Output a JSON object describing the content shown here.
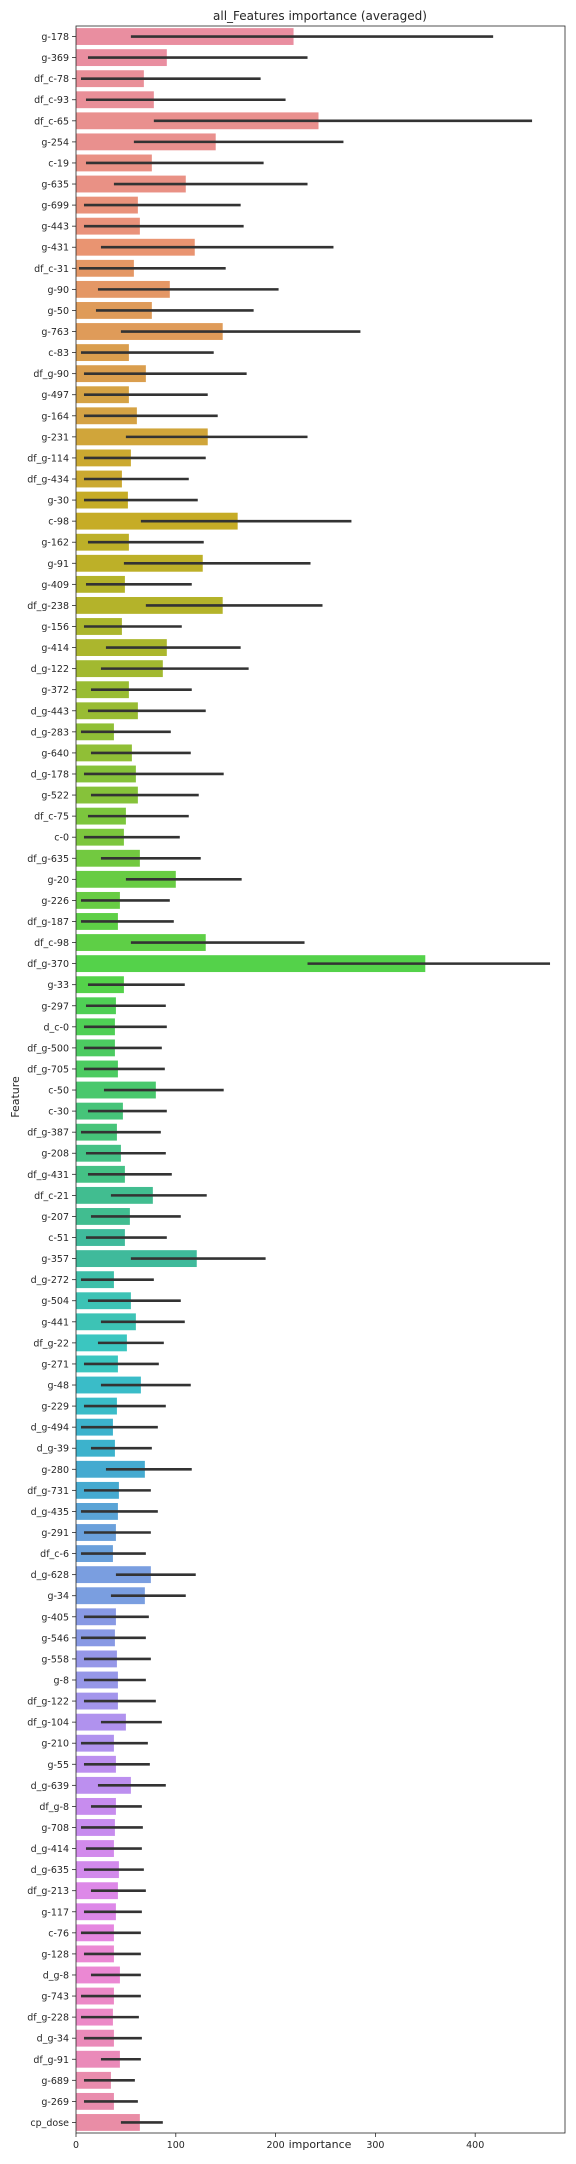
{
  "chart_data": {
    "type": "bar",
    "orientation": "horizontal",
    "title": "all_Features importance (averaged)",
    "xlabel": "importance",
    "ylabel": "Feature",
    "xlim": [
      0,
      490
    ],
    "xticks": [
      0,
      100,
      200,
      300,
      400
    ],
    "grid": false,
    "legend": "none",
    "error_bar_color": "#333333",
    "categories": [
      "g-178",
      "g-369",
      "df_c-78",
      "df_c-93",
      "df_c-65",
      "g-254",
      "c-19",
      "g-635",
      "g-699",
      "g-443",
      "g-431",
      "df_c-31",
      "g-90",
      "g-50",
      "g-763",
      "c-83",
      "df_g-90",
      "g-497",
      "g-164",
      "g-231",
      "df_g-114",
      "df_g-434",
      "g-30",
      "c-98",
      "g-162",
      "g-91",
      "g-409",
      "df_g-238",
      "g-156",
      "g-414",
      "d_g-122",
      "g-372",
      "d_g-443",
      "d_g-283",
      "g-640",
      "d_g-178",
      "g-522",
      "df_c-75",
      "c-0",
      "df_g-635",
      "g-20",
      "g-226",
      "df_g-187",
      "df_c-98",
      "df_g-370",
      "g-33",
      "g-297",
      "d_c-0",
      "df_g-500",
      "df_g-705",
      "c-50",
      "c-30",
      "df_g-387",
      "g-208",
      "df_g-431",
      "df_c-21",
      "g-207",
      "c-51",
      "g-357",
      "d_g-272",
      "g-504",
      "g-441",
      "df_g-22",
      "g-271",
      "g-48",
      "g-229",
      "d_g-494",
      "d_g-39",
      "g-280",
      "df_g-731",
      "d_g-435",
      "g-291",
      "df_c-6",
      "d_g-628",
      "g-34",
      "g-405",
      "g-546",
      "g-558",
      "g-8",
      "df_g-122",
      "df_g-104",
      "g-210",
      "g-55",
      "d_g-639",
      "df_g-8",
      "g-708",
      "d_g-414",
      "d_g-635",
      "df_g-213",
      "g-117",
      "c-76",
      "g-128",
      "d_g-8",
      "g-743",
      "df_g-228",
      "d_g-34",
      "df_g-91",
      "g-689",
      "g-269",
      "cp_dose"
    ],
    "values": [
      218,
      91,
      68,
      78,
      243,
      140,
      76,
      110,
      62,
      64,
      119,
      58,
      94,
      76,
      147,
      53,
      70,
      53,
      61,
      132,
      55,
      46,
      52,
      162,
      53,
      127,
      49,
      147,
      46,
      91,
      87,
      53,
      62,
      38,
      56,
      60,
      62,
      50,
      48,
      64,
      100,
      44,
      42,
      130,
      350,
      48,
      40,
      39,
      39,
      42,
      80,
      47,
      41,
      45,
      49,
      77,
      54,
      49,
      121,
      38,
      55,
      60,
      51,
      42,
      65,
      41,
      37,
      39,
      69,
      43,
      42,
      40,
      37,
      75,
      69,
      40,
      39,
      41,
      42,
      42,
      50,
      38,
      40,
      55,
      40,
      39,
      38,
      43,
      42,
      40,
      38,
      38,
      44,
      38,
      37,
      38,
      44,
      35,
      38,
      64
    ],
    "error_low": [
      55,
      12,
      5,
      10,
      78,
      58,
      10,
      38,
      8,
      8,
      25,
      3,
      22,
      20,
      45,
      5,
      8,
      8,
      8,
      50,
      8,
      8,
      8,
      65,
      12,
      48,
      10,
      70,
      8,
      30,
      25,
      15,
      12,
      5,
      15,
      8,
      15,
      12,
      8,
      25,
      50,
      5,
      5,
      55,
      232,
      12,
      10,
      8,
      8,
      8,
      28,
      12,
      5,
      10,
      12,
      35,
      15,
      10,
      55,
      5,
      12,
      25,
      22,
      8,
      25,
      8,
      5,
      15,
      30,
      8,
      5,
      8,
      5,
      40,
      35,
      8,
      5,
      8,
      8,
      8,
      25,
      5,
      8,
      22,
      15,
      5,
      10,
      8,
      15,
      8,
      5,
      8,
      15,
      5,
      5,
      8,
      25,
      8,
      8,
      45
    ],
    "error_high": [
      418,
      232,
      185,
      210,
      457,
      268,
      188,
      232,
      165,
      168,
      258,
      150,
      203,
      178,
      285,
      138,
      171,
      132,
      142,
      232,
      130,
      113,
      122,
      276,
      128,
      235,
      116,
      247,
      106,
      165,
      173,
      116,
      130,
      95,
      115,
      148,
      123,
      113,
      104,
      125,
      166,
      94,
      98,
      229,
      475,
      109,
      90,
      91,
      86,
      89,
      148,
      91,
      85,
      90,
      96,
      131,
      105,
      91,
      190,
      78,
      105,
      109,
      88,
      83,
      115,
      90,
      82,
      76,
      116,
      75,
      82,
      75,
      70,
      120,
      110,
      73,
      70,
      75,
      70,
      80,
      86,
      72,
      74,
      90,
      66,
      67,
      66,
      68,
      70,
      66,
      65,
      65,
      65,
      65,
      63,
      66,
      65,
      59,
      62,
      87
    ],
    "colors": [
      "#e98ea0",
      "#e98f98",
      "#e9908e",
      "#e99185",
      "#e9927b",
      "#e99471",
      "#e49765",
      "#df9b59",
      "#da9e4e",
      "#d5a244",
      "#d0a53a",
      "#cba930",
      "#c6ac26",
      "#bdb028",
      "#b4b32a",
      "#abb62d",
      "#a2b930",
      "#99bc33",
      "#90bf36",
      "#86c23a",
      "#7cc63d",
      "#72c940",
      "#68cc43",
      "#5ecf46",
      "#54d24a",
      "#4fcf55",
      "#4ccb61",
      "#49c86d",
      "#46c479",
      "#44c185",
      "#41bd90",
      "#3fba9b",
      "#3ebfa9",
      "#3dc3b5",
      "#3bc6c0",
      "#3abcc8",
      "#3cb2cc",
      "#45aad0",
      "#5aa4d6",
      "#6aa0db",
      "#7a9ee0",
      "#8899e4",
      "#9697e8",
      "#a395ec",
      "#b092ee",
      "#bc8fef",
      "#c78cee",
      "#d28aec",
      "#dd88e8",
      "#e586e0",
      "#eb88d3",
      "#ec89c7",
      "#ea8ab9",
      "#e98cad",
      "#e98da6"
    ]
  }
}
